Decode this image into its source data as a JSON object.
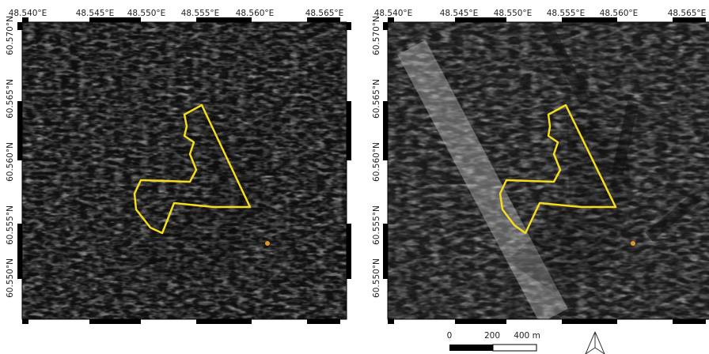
{
  "panels": [
    {
      "lon_labels": [
        "48.540°E",
        "48.545°E",
        "48.550°E",
        "48.555°E",
        "48.560°E",
        "48.565°E"
      ],
      "lat_labels": [
        "60.570°N",
        "60.565°N",
        "60.560°N",
        "60.555°N",
        "60.550°N"
      ]
    },
    {
      "lon_labels": [
        "48.540°E",
        "48.545°E",
        "48.550°E",
        "48.555°E",
        "48.560°E",
        "48.565°E"
      ],
      "lat_labels": [
        "60.570°N",
        "60.565°N",
        "60.560°N",
        "60.555°N",
        "60.550°N"
      ]
    }
  ],
  "scale_bar": {
    "labels": [
      "0",
      "200",
      "400 m"
    ]
  }
}
